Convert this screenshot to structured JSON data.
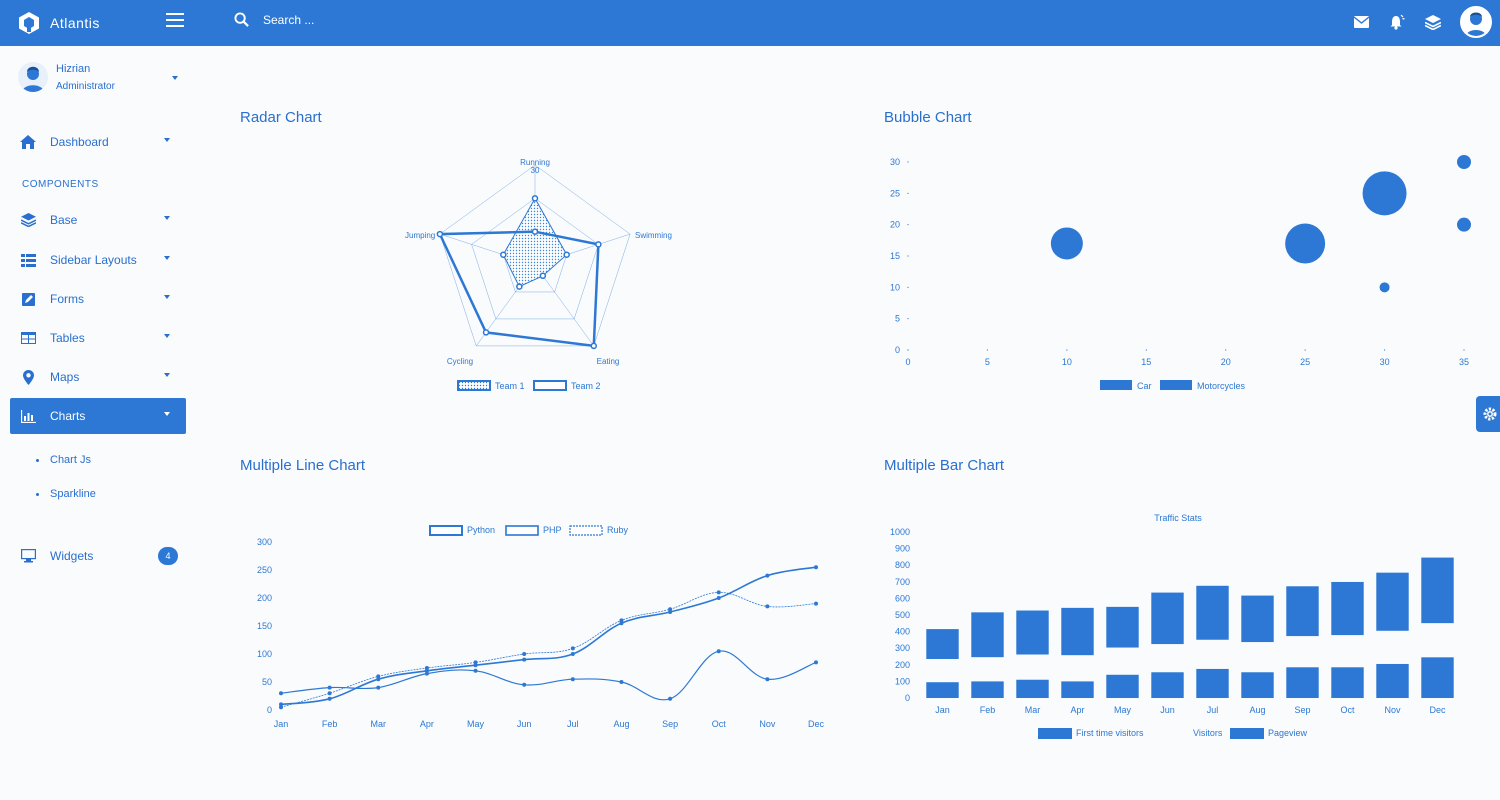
{
  "brand": {
    "name": "Atlantis"
  },
  "search": {
    "placeholder": "Search ..."
  },
  "user": {
    "name": "Hizrian",
    "role": "Administrator"
  },
  "sidebar": {
    "section_label": "COMPONENTS",
    "items": [
      {
        "label": "Dashboard",
        "icon": "home-icon"
      },
      {
        "label": "Base",
        "icon": "layers-icon"
      },
      {
        "label": "Sidebar Layouts",
        "icon": "th-list-icon"
      },
      {
        "label": "Forms",
        "icon": "pen-square-icon"
      },
      {
        "label": "Tables",
        "icon": "table-icon"
      },
      {
        "label": "Maps",
        "icon": "map-marker-icon"
      },
      {
        "label": "Charts",
        "icon": "bar-chart-icon",
        "active": true
      },
      {
        "label": "Widgets",
        "icon": "desktop-icon",
        "badge": "4"
      }
    ],
    "sub_items": [
      {
        "label": "Chart Js"
      },
      {
        "label": "Sparkline"
      }
    ]
  },
  "cards": {
    "radar": {
      "title": "Radar Chart"
    },
    "bubble": {
      "title": "Bubble Chart"
    },
    "line": {
      "title": "Multiple Line Chart"
    },
    "bar": {
      "title": "Multiple Bar Chart"
    }
  },
  "colors": {
    "primary": "#2c78d4",
    "text": "#2a6fcf",
    "background": "#f9fbfd"
  },
  "chart_data": [
    {
      "type": "radar",
      "labels": [
        "Running",
        "Swimming",
        "Eating",
        "Cycling",
        "Jumping"
      ],
      "scale_max_label": "30",
      "rmax": 30,
      "series": [
        {
          "name": "Team 1",
          "values": [
            20,
            10,
            4,
            8,
            10
          ]
        },
        {
          "name": "Team 2",
          "values": [
            10,
            20,
            30,
            25,
            30
          ]
        }
      ],
      "legend": "bottom"
    },
    {
      "type": "scatter",
      "subtype": "bubble",
      "xlim": [
        0,
        35
      ],
      "ylim": [
        0,
        30
      ],
      "xticks": [
        "0",
        "5",
        "10",
        "15",
        "20",
        "25",
        "30",
        "35"
      ],
      "yticks": [
        "0",
        "5",
        "10",
        "15",
        "20",
        "25",
        "30"
      ],
      "series": [
        {
          "name": "Car",
          "points": [
            {
              "x": 10,
              "y": 17,
              "r": "large"
            },
            {
              "x": 25,
              "y": 17,
              "r": "large"
            },
            {
              "x": 30,
              "y": 25,
              "r": "large"
            },
            {
              "x": 30,
              "y": 10,
              "r": "small"
            },
            {
              "x": 35,
              "y": 30,
              "r": "small"
            },
            {
              "x": 35,
              "y": 20,
              "r": "small"
            }
          ]
        },
        {
          "name": "Motorcycles",
          "points": []
        }
      ],
      "legend": "bottom"
    },
    {
      "type": "line",
      "categories": [
        "Jan",
        "Feb",
        "Mar",
        "Apr",
        "May",
        "Jun",
        "Jul",
        "Aug",
        "Sep",
        "Oct",
        "Nov",
        "Dec"
      ],
      "ylim": [
        0,
        300
      ],
      "yticks": [
        "0",
        "50",
        "100",
        "150",
        "200",
        "250",
        "300"
      ],
      "series": [
        {
          "name": "Python",
          "values": [
            10,
            20,
            55,
            70,
            80,
            90,
            100,
            155,
            175,
            200,
            240,
            255
          ]
        },
        {
          "name": "PHP",
          "values": [
            30,
            40,
            40,
            65,
            70,
            45,
            55,
            50,
            20,
            105,
            55,
            85
          ]
        },
        {
          "name": "Ruby",
          "values": [
            5,
            30,
            60,
            75,
            85,
            100,
            110,
            160,
            180,
            210,
            185,
            190
          ]
        }
      ],
      "legend": "top"
    },
    {
      "type": "bar",
      "title": "Traffic Stats",
      "categories": [
        "Jan",
        "Feb",
        "Mar",
        "Apr",
        "May",
        "Jun",
        "Jul",
        "Aug",
        "Sep",
        "Oct",
        "Nov",
        "Dec"
      ],
      "ylim": [
        0,
        1000
      ],
      "yticks": [
        "0",
        "100",
        "200",
        "300",
        "400",
        "500",
        "600",
        "700",
        "800",
        "900",
        "1000"
      ],
      "series": [
        {
          "name": "First time visitors",
          "values": [
            95,
            100,
            110,
            100,
            140,
            155,
            175,
            155,
            185,
            185,
            205,
            245
          ]
        },
        {
          "name": "Visitors",
          "values": [
            0,
            0,
            0,
            0,
            0,
            0,
            0,
            0,
            0,
            0,
            0,
            0
          ]
        },
        {
          "name": "Pageview",
          "values": [
            180,
            270,
            265,
            285,
            245,
            310,
            325,
            280,
            300,
            320,
            350,
            395
          ]
        }
      ],
      "stacked": true,
      "legend": "bottom"
    }
  ]
}
